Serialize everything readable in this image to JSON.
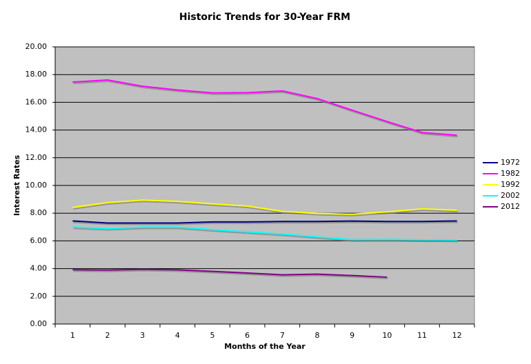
{
  "chart_data": {
    "type": "line",
    "title": "Historic Trends for 30-Year FRM",
    "x_label": "Months of the Year",
    "y_label": "Interest Rates",
    "categories": [
      "1",
      "2",
      "3",
      "4",
      "5",
      "6",
      "7",
      "8",
      "9",
      "10",
      "11",
      "12"
    ],
    "ylim": [
      0,
      20
    ],
    "yticks": [
      {
        "value": 0,
        "label": "0.00"
      },
      {
        "value": 2,
        "label": "2.00"
      },
      {
        "value": 4,
        "label": "4.00"
      },
      {
        "value": 6,
        "label": "6.00"
      },
      {
        "value": 8,
        "label": "8.00"
      },
      {
        "value": 10,
        "label": "10.00"
      },
      {
        "value": 12,
        "label": "12.00"
      },
      {
        "value": 14,
        "label": "14.00"
      },
      {
        "value": 16,
        "label": "16.00"
      },
      {
        "value": 18,
        "label": "18.00"
      },
      {
        "value": 20,
        "label": "20.00"
      }
    ],
    "grid": true,
    "legend": "right",
    "series": [
      {
        "name": "1972",
        "color": "#000080",
        "values": [
          7.44,
          7.29,
          7.29,
          7.29,
          7.37,
          7.37,
          7.4,
          7.4,
          7.43,
          7.4,
          7.4,
          7.44
        ]
      },
      {
        "name": "1982",
        "color": "#ff00ff",
        "values": [
          17.46,
          17.61,
          17.16,
          16.89,
          16.68,
          16.7,
          16.82,
          16.27,
          15.43,
          14.61,
          13.82,
          13.62
        ]
      },
      {
        "name": "1992",
        "color": "#ffff00",
        "values": [
          8.41,
          8.76,
          8.94,
          8.85,
          8.67,
          8.51,
          8.13,
          7.98,
          7.92,
          8.09,
          8.31,
          8.21
        ]
      },
      {
        "name": "2002",
        "color": "#00ffff",
        "values": [
          7.0,
          6.89,
          6.99,
          6.99,
          6.81,
          6.65,
          6.49,
          6.29,
          6.09,
          6.11,
          6.07,
          6.05
        ]
      },
      {
        "name": "2012",
        "color": "#800080",
        "values": [
          3.92,
          3.89,
          3.95,
          3.91,
          3.8,
          3.68,
          3.55,
          3.6,
          3.5,
          3.38,
          null,
          null
        ]
      }
    ]
  }
}
